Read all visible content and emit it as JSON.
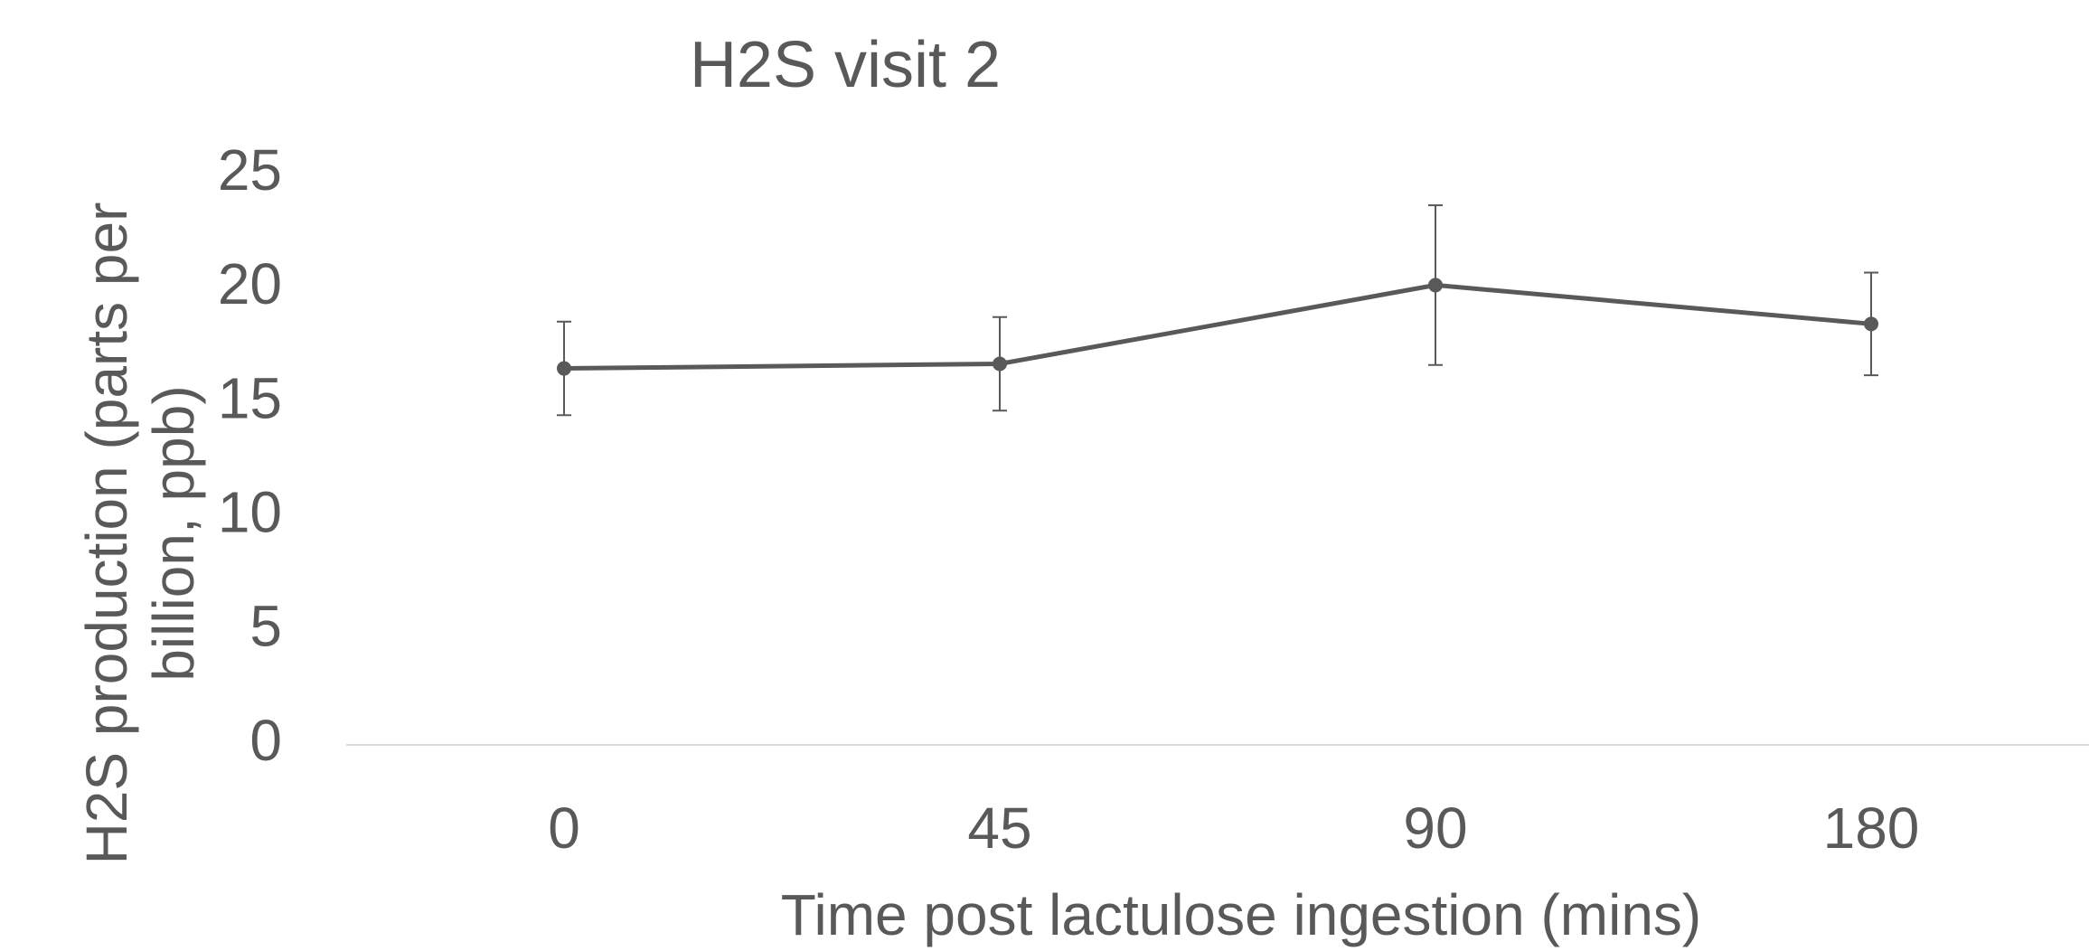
{
  "chart_data": {
    "type": "line",
    "title": "H2S visit 2",
    "x_label": "Time post lactulose ingestion (mins)",
    "y_label": "H2S production (parts per billion, ppb)",
    "categories": [
      "0",
      "45",
      "90",
      "180"
    ],
    "values": [
      16.5,
      16.7,
      20.15,
      18.45
    ],
    "errors": [
      2.05,
      2.05,
      3.5,
      2.25
    ],
    "color": "#595959",
    "ylim": [
      0,
      25
    ],
    "yticks": [
      0,
      5,
      10,
      15,
      20,
      25
    ],
    "grid": false
  }
}
